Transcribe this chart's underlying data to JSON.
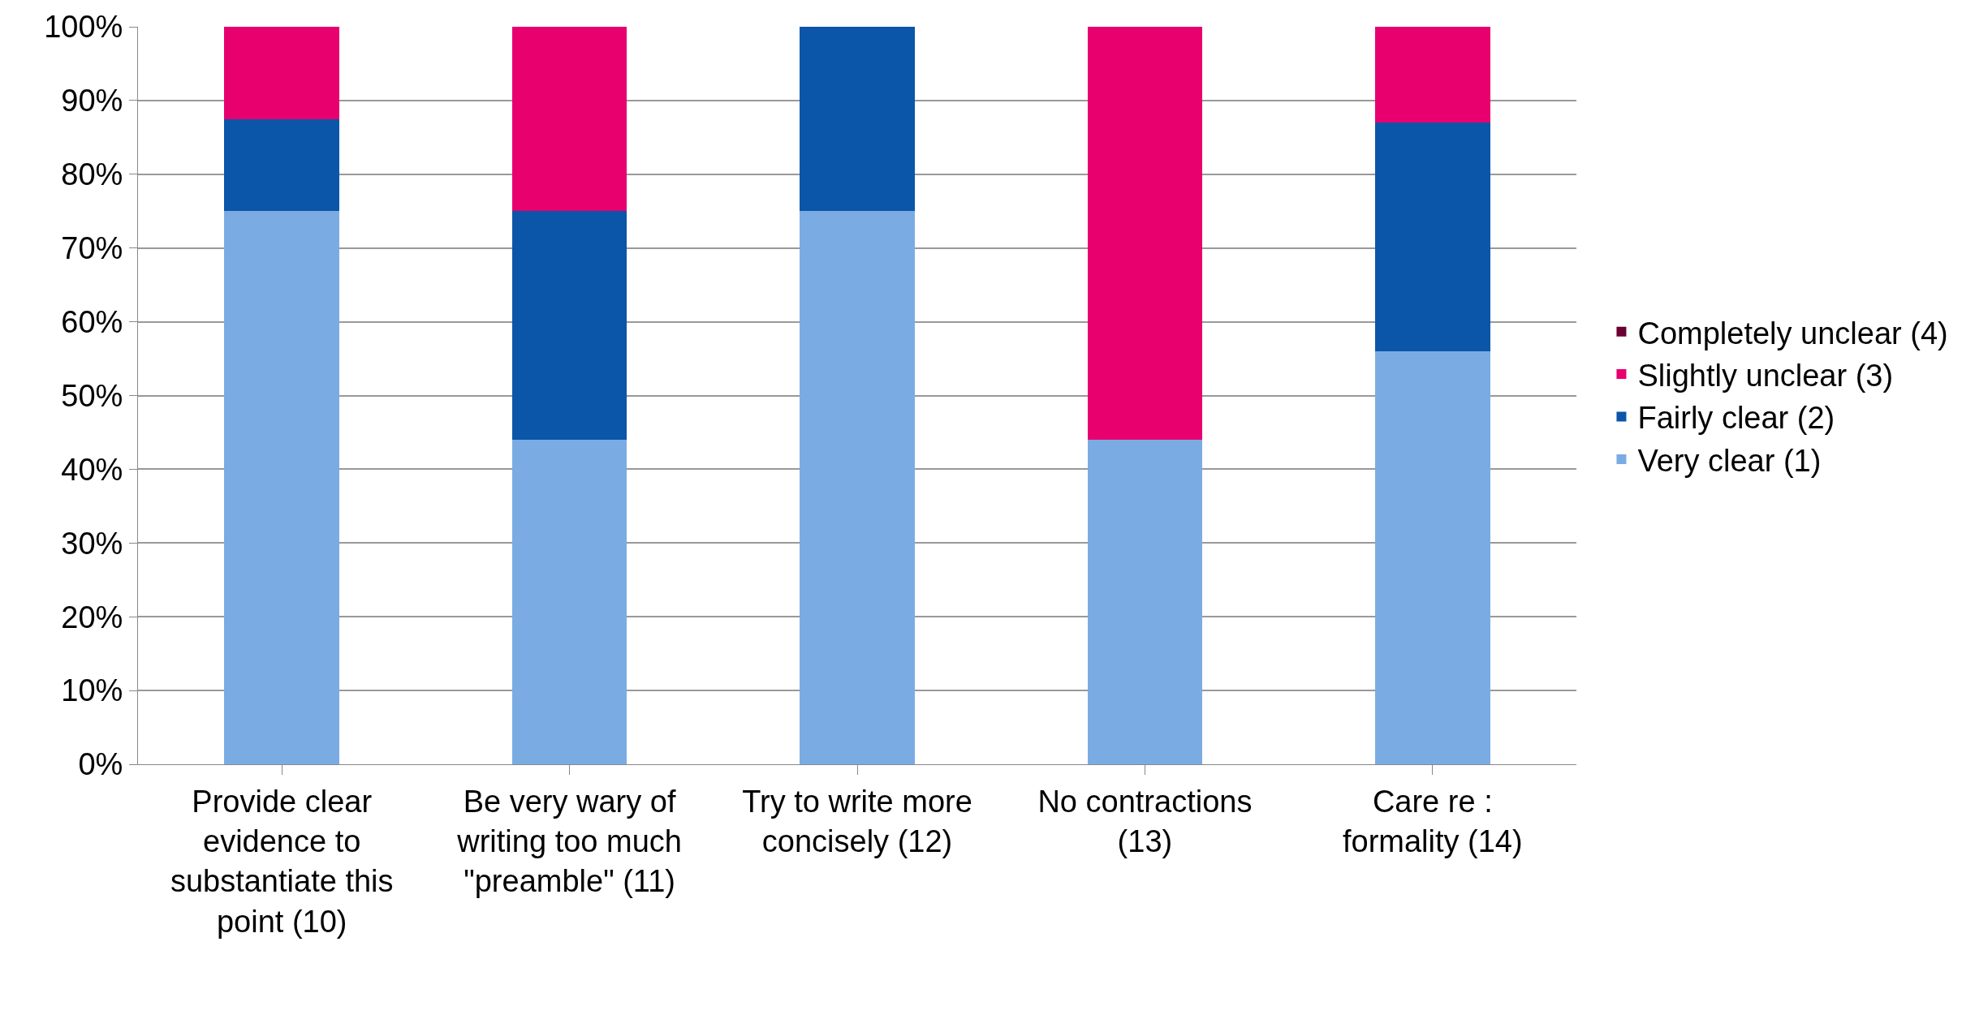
{
  "chart_data": {
    "type": "bar",
    "stacked": true,
    "categories": [
      "Provide clear evidence to substantiate this point (10)",
      "Be very wary of writing too much \"preamble\" (11)",
      "Try to write more concisely (12)",
      "No contractions (13)",
      "Care re : formality (14)"
    ],
    "series": [
      {
        "name": "Very clear (1)",
        "color": "#7aace3",
        "values": [
          75,
          44,
          75,
          44,
          56
        ]
      },
      {
        "name": "Fairly clear (2)",
        "color": "#0b56a8",
        "values": [
          12.5,
          31,
          25,
          0,
          31
        ]
      },
      {
        "name": "Slightly unclear (3)",
        "color": "#e8006f",
        "values": [
          12.5,
          25,
          0,
          56,
          13
        ]
      },
      {
        "name": "Completely unclear (4)",
        "color": "#6b0033",
        "values": [
          0,
          0,
          0,
          0,
          0
        ]
      }
    ],
    "ylim": [
      0,
      100
    ],
    "yticks": [
      {
        "value": 0,
        "label": "0%"
      },
      {
        "value": 10,
        "label": "10%"
      },
      {
        "value": 20,
        "label": "20%"
      },
      {
        "value": 30,
        "label": "30%"
      },
      {
        "value": 40,
        "label": "40%"
      },
      {
        "value": 50,
        "label": "50%"
      },
      {
        "value": 60,
        "label": "60%"
      },
      {
        "value": 70,
        "label": "70%"
      },
      {
        "value": 80,
        "label": "80%"
      },
      {
        "value": 90,
        "label": "90%"
      },
      {
        "value": 100,
        "label": "100%"
      }
    ],
    "grid": "y",
    "legend": "right"
  }
}
